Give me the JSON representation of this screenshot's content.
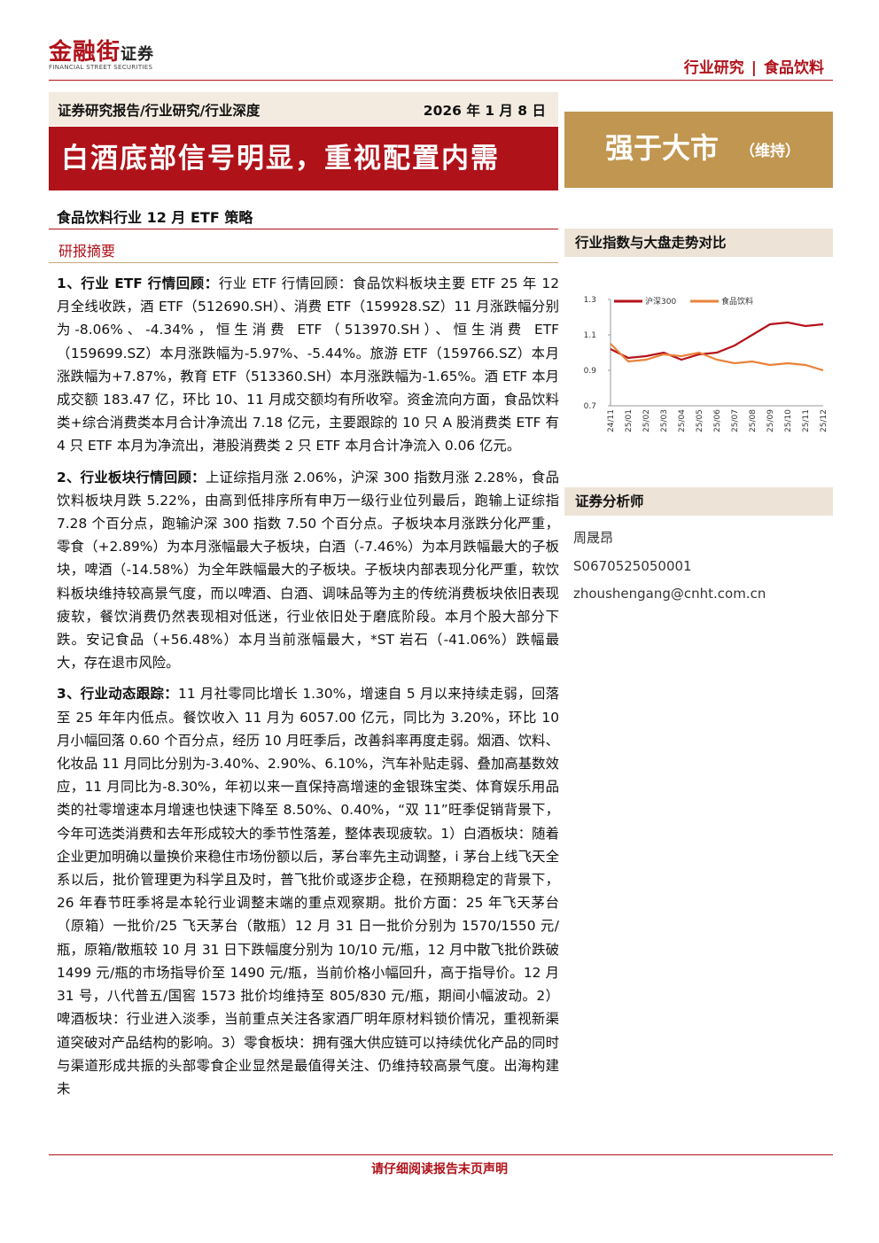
{
  "header": {
    "logo": "金融街",
    "logo_suffix": "证券",
    "logo_en": "FINANCIAL STREET SECURITIES",
    "category": "行业研究",
    "industry": "食品饮料"
  },
  "report_type": "证券研究报告/行业研究/行业深度",
  "date": "2026 年 1 月 8 日",
  "title": "白酒底部信号明显，重视配置内需",
  "rating": {
    "text": "强于大市",
    "note": "（维持）"
  },
  "subtitle": "食品饮料行业 12 月 ETF 策略",
  "section_title": "研报摘要",
  "paragraphs": [
    {
      "lead": "1、行业 ETF 行情回顾：",
      "body": "行业 ETF 行情回顾：食品饮料板块主要 ETF 25 年 12 月全线收跌，酒 ETF（512690.SH）、消费 ETF（159928.SZ）11 月涨跌幅分别为-8.06%、-4.34%，恒生消费 ETF（513970.SH）、恒生消费 ETF（159699.SZ）本月涨跌幅为-5.97%、-5.44%。旅游 ETF（159766.SZ）本月涨跌幅为+7.87%，教育 ETF（513360.SH）本月涨跌幅为-1.65%。酒 ETF 本月成交额 183.47 亿，环比 10、11 月成交额均有所收窄。资金流向方面，食品饮料类+综合消费类本月合计净流出 7.18 亿元，主要跟踪的 10 只 A 股消费类 ETF 有 4 只 ETF 本月为净流出，港股消费类 2 只 ETF 本月合计净流入 0.06 亿元。"
    },
    {
      "lead": "2、行业板块行情回顾：",
      "body": "上证综指月涨 2.06%，沪深 300 指数月涨 2.28%，食品饮料板块月跌 5.22%，由高到低排序所有申万一级行业位列最后，跑输上证综指 7.28 个百分点，跑输沪深 300 指数 7.50 个百分点。子板块本月涨跌分化严重，零食（+2.89%）为本月涨幅最大子板块，白酒（-7.46%）为本月跌幅最大的子板块，啤酒（-14.58%）为全年跌幅最大的子板块。子板块内部表现分化严重，软饮料板块维持较高景气度，而以啤酒、白酒、调味品等为主的传统消费板块依旧表现疲软，餐饮消费仍然表现相对低迷，行业依旧处于磨底阶段。本月个股大部分下跌。安记食品（+56.48%）本月当前涨幅最大，*ST 岩石（-41.06%）跌幅最大，存在退市风险。"
    },
    {
      "lead": "3、行业动态跟踪：",
      "body": "11 月社零同比增长 1.30%，增速自 5 月以来持续走弱，回落至 25 年年内低点。餐饮收入 11 月为 6057.00 亿元，同比为 3.20%，环比 10 月小幅回落 0.60 个百分点，经历 10 月旺季后，改善斜率再度走弱。烟酒、饮料、化妆品 11 月同比分别为-3.40%、2.90%、6.10%，汽车补贴走弱、叠加高基数效应，11 月同比为-8.30%，年初以来一直保持高增速的金银珠宝类、体育娱乐用品类的社零增速本月增速也快速下降至 8.50%、0.40%，“双 11”旺季促销背景下，今年可选类消费和去年形成较大的季节性落差，整体表现疲软。1）白酒板块：随着企业更加明确以量换价来稳住市场份额以后，茅台率先主动调整，i 茅台上线飞天全系以后，批价管理更为科学且及时，普飞批价或逐步企稳，在预期稳定的背景下，26 年春节旺季将是本轮行业调整末端的重点观察期。批价方面：25 年飞天茅台（原箱）一批价/25 飞天茅台（散瓶）12 月 31 日一批价分别为 1570/1550 元/瓶，原箱/散瓶较 10 月 31 日下跌幅度分别为 10/10 元/瓶，12 月中散飞批价跌破 1499 元/瓶的市场指导价至 1490 元/瓶，当前价格小幅回升，高于指导价。12 月 31 号，八代普五/国窖 1573 批价均维持至 805/830 元/瓶，期间小幅波动。2）啤酒板块：行业进入淡季，当前重点关注各家酒厂明年原材料锁价情况，重视新渠道突破对产品结构的影响。3）零食板块：拥有强大供应链可以持续优化产品的同时与渠道形成共振的头部零食企业显然是最值得关注、仍维持较高景气度。出海构建未"
    }
  ],
  "chart": {
    "type": "line",
    "title": "行业指数与大盘走势对比",
    "categories": [
      "24/11",
      "25/01",
      "25/02",
      "25/03",
      "25/04",
      "25/05",
      "25/06",
      "25/07",
      "25/08",
      "25/09",
      "25/10",
      "25/11",
      "25/12"
    ],
    "series": [
      {
        "name": "沪深300",
        "color": "#b5121b",
        "values": [
          1.02,
          0.97,
          0.98,
          1.0,
          0.96,
          0.99,
          1.0,
          1.04,
          1.1,
          1.16,
          1.17,
          1.15,
          1.16
        ]
      },
      {
        "name": "食品饮料",
        "color": "#e8833a",
        "values": [
          1.05,
          0.95,
          0.96,
          0.99,
          0.98,
          1.0,
          0.96,
          0.94,
          0.95,
          0.93,
          0.94,
          0.93,
          0.9
        ]
      }
    ],
    "ylim": [
      0.7,
      1.3
    ],
    "yticks": [
      0.7,
      0.9,
      1.1,
      1.3
    ]
  },
  "analyst": {
    "heading": "证券分析师",
    "name": "周晟昂",
    "license": "S0670525050001",
    "email": "zhoushengang@cnht.com.cn"
  },
  "footer": "请仔细阅读报告末页声明"
}
